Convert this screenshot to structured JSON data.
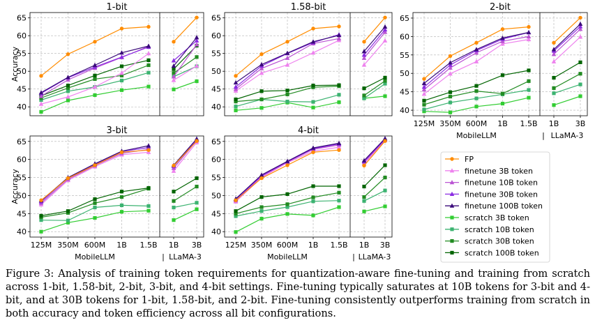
{
  "chart_data": {
    "type": "line",
    "ylabel": "Accuracy",
    "xlabel_mobilellm": "MobileLLM",
    "xlabel_llama": "LLaMA-3",
    "separator": "|",
    "mobilellm_categories": [
      "125M",
      "350M",
      "600M",
      "1B",
      "1.5B"
    ],
    "llama_categories": [
      "1B",
      "3B"
    ],
    "legend": [
      {
        "key": "fp",
        "label": "FP",
        "color": "#ff8c00",
        "marker": "circle"
      },
      {
        "key": "ft3",
        "label": "finetune 3B token",
        "color": "#ee82ee",
        "marker": "triangle"
      },
      {
        "key": "ft10",
        "label": "finetune 10B token",
        "color": "#ba55d3",
        "marker": "triangle"
      },
      {
        "key": "ft30",
        "label": "finetune 30B token",
        "color": "#8a2be2",
        "marker": "triangle"
      },
      {
        "key": "ft100",
        "label": "finetune 100B token",
        "color": "#3a0a7a",
        "marker": "triangle"
      },
      {
        "key": "sc3",
        "label": "scratch 3B token",
        "color": "#32cd32",
        "marker": "square"
      },
      {
        "key": "sc10",
        "label": "scratch 10B token",
        "color": "#3cb371",
        "marker": "square"
      },
      {
        "key": "sc30",
        "label": "scratch 30B token",
        "color": "#228b22",
        "marker": "square"
      },
      {
        "key": "sc100",
        "label": "scratch 100B token",
        "color": "#006400",
        "marker": "square"
      }
    ],
    "subplots": [
      {
        "title": "1-bit",
        "ylim": [
          37.5,
          66.5
        ],
        "yticks": [
          40,
          45,
          50,
          55,
          60,
          65
        ],
        "show_xticks": false,
        "show_xlabel": false,
        "show_ylabel": true,
        "series": {
          "fp": {
            "mobile": [
              48.7,
              54.8,
              58.3,
              62.0,
              62.5
            ],
            "llama": [
              58.3,
              65.1
            ]
          },
          "ft3": {
            "mobile": [
              40.8,
              42.8,
              45.6,
              49.5,
              55.0
            ],
            "llama": [
              47.5,
              51.5
            ]
          },
          "ft10": {
            "mobile": [
              43.0,
              47.6,
              50.9,
              53.9,
              57.0
            ],
            "llama": [
              48.5,
              57.5
            ]
          },
          "ft30": {
            "mobile": [
              43.8,
              48.2,
              51.2,
              54.0,
              56.8
            ],
            "llama": [
              53.0,
              58.6
            ]
          },
          "ft100": {
            "mobile": [
              44.0,
              48.3,
              51.7,
              55.2,
              57.1
            ],
            "llama": [
              51.5,
              59.5
            ]
          },
          "sc3": {
            "mobile": [
              38.6,
              41.8,
              43.3,
              44.7,
              45.7
            ],
            "llama": [
              44.9,
              47.2
            ]
          },
          "sc10": {
            "mobile": [
              41.9,
              44.4,
              45.6,
              47.4,
              49.6
            ],
            "llama": [
              48.5,
              51.4
            ]
          },
          "sc30": {
            "mobile": [
              42.5,
              45.3,
              47.8,
              48.8,
              51.7
            ],
            "llama": [
              49.5,
              54.0
            ]
          },
          "sc100": {
            "mobile": [
              43.1,
              46.0,
              48.8,
              51.4,
              53.1
            ],
            "llama": [
              50.6,
              57.2
            ]
          }
        }
      },
      {
        "title": "1.58-bit",
        "ylim": [
          37.5,
          66.5
        ],
        "yticks": [
          40,
          45,
          50,
          55,
          60,
          65
        ],
        "show_xticks": false,
        "show_xlabel": false,
        "show_ylabel": false,
        "series": {
          "fp": {
            "mobile": [
              48.7,
              54.8,
              58.3,
              62.0,
              62.6
            ],
            "llama": [
              58.3,
              65.1
            ]
          },
          "ft3": {
            "mobile": [
              44.5,
              49.5,
              51.8,
              55.2,
              58.7
            ],
            "llama": [
              51.8,
              58.6
            ]
          },
          "ft10": {
            "mobile": [
              45.0,
              50.8,
              53.7,
              57.8,
              59.2
            ],
            "llama": [
              53.7,
              61.0
            ]
          },
          "ft30": {
            "mobile": [
              45.6,
              51.5,
              55.0,
              58.1,
              60.3
            ],
            "llama": [
              54.6,
              61.7
            ]
          },
          "ft100": {
            "mobile": [
              46.8,
              51.9,
              55.1,
              58.3,
              60.1
            ],
            "llama": [
              55.6,
              62.5
            ]
          },
          "sc3": {
            "mobile": [
              39.0,
              39.7,
              41.2,
              39.8,
              41.3
            ],
            "llama": [
              42.4,
              43.0
            ]
          },
          "sc10": {
            "mobile": [
              40.1,
              42.1,
              41.5,
              41.4,
              43.4
            ],
            "llama": [
              42.4,
              46.5
            ]
          },
          "sc30": {
            "mobile": [
              41.5,
              42.1,
              43.5,
              45.5,
              45.8
            ],
            "llama": [
              43.2,
              47.3
            ]
          },
          "sc100": {
            "mobile": [
              42.1,
              44.4,
              44.6,
              46.0,
              46.1
            ],
            "llama": [
              45.2,
              48.2
            ]
          }
        }
      },
      {
        "title": "2-bit",
        "ylim": [
          38.5,
          66.5
        ],
        "yticks": [
          40,
          45,
          50,
          55,
          60,
          65
        ],
        "show_xticks": true,
        "show_xlabel": true,
        "show_ylabel": false,
        "series": {
          "fp": {
            "mobile": [
              48.5,
              54.7,
              58.3,
              62.0,
              62.6
            ],
            "llama": [
              58.3,
              65.1
            ]
          },
          "ft3": {
            "mobile": [
              44.4,
              49.9,
              53.2,
              58.0,
              59.2
            ],
            "llama": [
              53.2,
              59.9
            ]
          },
          "ft10": {
            "mobile": [
              45.6,
              51.5,
              55.6,
              58.7,
              60.0
            ],
            "llama": [
              55.2,
              62.0
            ]
          },
          "ft30": {
            "mobile": [
              46.3,
              52.3,
              56.2,
              59.3,
              61.1
            ],
            "llama": [
              56.1,
              62.7
            ]
          },
          "ft100": {
            "mobile": [
              47.3,
              52.9,
              56.5,
              59.6,
              61.1
            ],
            "llama": [
              56.5,
              63.4
            ]
          },
          "sc3": {
            "mobile": [
              39.7,
              39.4,
              41.0,
              41.8,
              43.4
            ],
            "llama": [
              41.4,
              43.8
            ]
          },
          "sc10": {
            "mobile": [
              40.2,
              42.1,
              43.2,
              44.3,
              45.5
            ],
            "llama": [
              44.6,
              47.0
            ]
          },
          "sc30": {
            "mobile": [
              41.5,
              43.7,
              45.2,
              44.5,
              47.9
            ],
            "llama": [
              46.0,
              49.9
            ]
          },
          "sc100": {
            "mobile": [
              42.6,
              44.9,
              46.6,
              49.5,
              50.8
            ],
            "llama": [
              48.8,
              53.0
            ]
          }
        }
      },
      {
        "title": "3-bit",
        "ylim": [
          38.5,
          66.5
        ],
        "yticks": [
          40,
          45,
          50,
          55,
          60,
          65
        ],
        "show_xticks": true,
        "show_xlabel": true,
        "show_ylabel": true,
        "series": {
          "fp": {
            "mobile": [
              48.7,
              54.8,
              58.4,
              62.0,
              62.6
            ],
            "llama": [
              58.3,
              65.1
            ]
          },
          "ft3": {
            "mobile": [
              47.5,
              54.2,
              58.0,
              61.3,
              62.0
            ],
            "llama": [
              56.8,
              64.7
            ]
          },
          "ft10": {
            "mobile": [
              47.9,
              54.5,
              58.3,
              61.7,
              62.8
            ],
            "llama": [
              57.6,
              65.2
            ]
          },
          "ft30": {
            "mobile": [
              48.3,
              54.9,
              58.6,
              62.2,
              63.3
            ],
            "llama": [
              58.1,
              65.4
            ]
          },
          "ft100": {
            "mobile": [
              48.6,
              55.0,
              58.8,
              62.3,
              63.8
            ],
            "llama": [
              58.4,
              65.7
            ]
          },
          "sc3": {
            "mobile": [
              40.0,
              42.5,
              43.8,
              45.5,
              45.8
            ],
            "llama": [
              43.2,
              46.2
            ]
          },
          "sc10": {
            "mobile": [
              43.2,
              43.1,
              46.7,
              47.3,
              47.1
            ],
            "llama": [
              46.7,
              48.0
            ]
          },
          "sc30": {
            "mobile": [
              44.0,
              45.2,
              47.9,
              49.6,
              51.9
            ],
            "llama": [
              48.5,
              52.5
            ]
          },
          "sc100": {
            "mobile": [
              44.4,
              45.7,
              49.0,
              51.1,
              52.1
            ],
            "llama": [
              51.1,
              54.8
            ]
          }
        }
      },
      {
        "title": "4-bit",
        "ylim": [
          38.5,
          66.5
        ],
        "yticks": [
          40,
          45,
          50,
          55,
          60,
          65
        ],
        "show_xticks": true,
        "show_xlabel": true,
        "show_ylabel": false,
        "series": {
          "fp": {
            "mobile": [
              48.7,
              54.8,
              58.4,
              62.0,
              62.6
            ],
            "llama": [
              58.3,
              65.1
            ]
          },
          "ft3": {
            "mobile": [
              48.3,
              55.0,
              59.1,
              62.3,
              63.4
            ],
            "llama": [
              58.8,
              65.3
            ]
          },
          "ft10": {
            "mobile": [
              48.6,
              55.3,
              59.3,
              62.8,
              64.0
            ],
            "llama": [
              59.2,
              65.4
            ]
          },
          "ft30": {
            "mobile": [
              48.9,
              55.5,
              59.4,
              63.0,
              64.3
            ],
            "llama": [
              59.5,
              65.6
            ]
          },
          "ft100": {
            "mobile": [
              49.1,
              55.7,
              59.5,
              63.2,
              64.5
            ],
            "llama": [
              59.7,
              65.8
            ]
          },
          "sc3": {
            "mobile": [
              39.9,
              43.6,
              44.9,
              44.5,
              46.8
            ],
            "llama": [
              45.6,
              47.0
            ]
          },
          "sc10": {
            "mobile": [
              44.3,
              45.7,
              46.8,
              48.4,
              48.6
            ],
            "llama": [
              48.5,
              51.4
            ]
          },
          "sc30": {
            "mobile": [
              45.0,
              46.8,
              47.6,
              49.5,
              50.8
            ],
            "llama": [
              49.6,
              55.0
            ]
          },
          "sc100": {
            "mobile": [
              45.7,
              49.6,
              50.4,
              52.6,
              52.6
            ],
            "llama": [
              52.5,
              58.4
            ]
          }
        }
      }
    ]
  },
  "caption": "Figure 3: Analysis of training token requirements for quantization-aware fine-tuning and training from scratch across 1-bit, 1.58-bit, 2-bit, 3-bit, and 4-bit settings. Fine-tuning typically saturates at 10B tokens for 3-bit and 4-bit, and at 30B tokens for 1-bit, 1.58-bit, and 2-bit. Fine-tuning consistently outperforms training from scratch in both accuracy and token efficiency across all bit configurations."
}
